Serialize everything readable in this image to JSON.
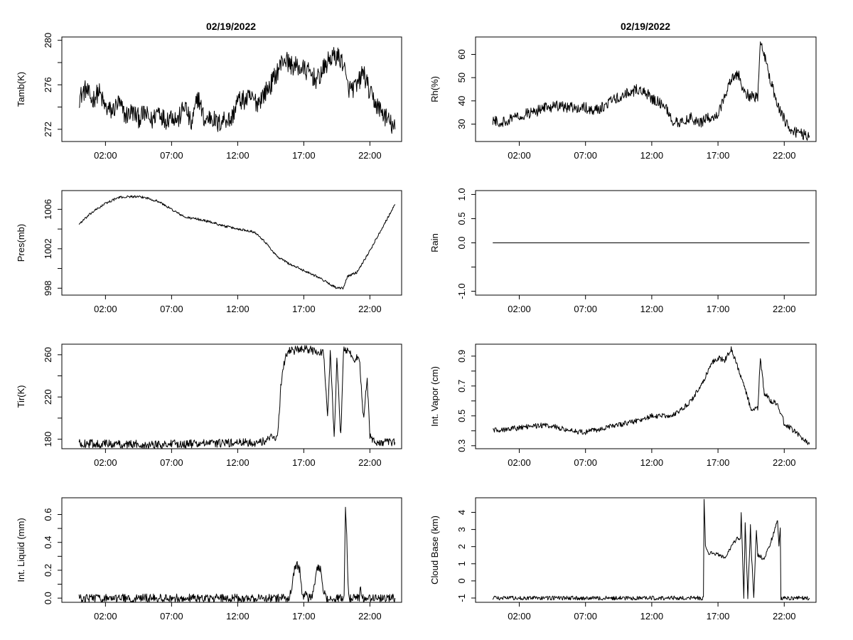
{
  "page": {
    "left_title": "02/19/2022",
    "right_title": "02/19/2022"
  },
  "chart_data": [
    {
      "id": "tamb",
      "type": "line",
      "ylabel": "Tamb(K)",
      "xlim": [
        -1.3,
        24.4
      ],
      "ylim": [
        270.9,
        280.3
      ],
      "xticks": [
        2,
        7,
        12,
        17,
        22
      ],
      "xticklabels": [
        "02:00",
        "07:00",
        "12:00",
        "17:00",
        "22:00"
      ],
      "yticks": [
        272,
        274,
        276,
        278,
        280
      ],
      "yticklabels": [
        "272",
        "",
        "276",
        "",
        "280"
      ],
      "x": [
        0,
        0.5,
        1,
        1.5,
        2,
        2.5,
        3,
        3.5,
        4,
        4.5,
        5,
        5.5,
        6,
        6.5,
        7,
        7.5,
        8,
        8.5,
        9,
        9.5,
        10,
        10.5,
        11,
        11.5,
        12,
        12.5,
        13,
        13.5,
        14,
        14.5,
        15,
        15.5,
        16,
        16.5,
        17,
        17.5,
        18,
        18.5,
        19,
        19.5,
        20,
        20.25,
        20.5,
        21,
        21.5,
        22,
        22.5,
        23,
        23.5,
        23.9
      ],
      "y": [
        274.8,
        275.6,
        274.6,
        275.4,
        273.9,
        273.6,
        274.4,
        273.2,
        273.6,
        273.0,
        273.4,
        272.7,
        273.8,
        272.8,
        273.3,
        272.8,
        274.2,
        272.3,
        275.0,
        272.7,
        273.2,
        272.4,
        273.0,
        272.8,
        274.6,
        274.6,
        274.8,
        274.4,
        275.2,
        276.0,
        277.2,
        278.4,
        277.8,
        277.6,
        277.4,
        277.0,
        276.4,
        277.4,
        278.4,
        278.6,
        278.0,
        276.0,
        275.6,
        275.8,
        277.2,
        275.2,
        274.2,
        273.4,
        272.6,
        272.0
      ],
      "noise": 0.9
    },
    {
      "id": "pres",
      "type": "line",
      "ylabel": "Pres(mb)",
      "xlim": [
        -1.3,
        24.4
      ],
      "ylim": [
        997.3,
        1007.9
      ],
      "xticks": [
        2,
        7,
        12,
        17,
        22
      ],
      "xticklabels": [
        "02:00",
        "07:00",
        "12:00",
        "17:00",
        "22:00"
      ],
      "yticks": [
        998,
        1000,
        1002,
        1004,
        1006
      ],
      "yticklabels": [
        "998",
        "",
        "1002",
        "",
        "1006"
      ],
      "x": [
        0,
        1,
        2,
        3,
        4,
        5,
        6,
        7,
        8,
        9,
        10,
        11,
        12,
        13,
        13.5,
        14,
        15,
        16,
        17,
        18,
        19,
        19.5,
        20,
        20.3,
        21,
        22,
        23,
        23.9
      ],
      "y": [
        1004.5,
        1005.7,
        1006.6,
        1007.2,
        1007.3,
        1007.2,
        1006.8,
        1006.0,
        1005.2,
        1005.0,
        1004.7,
        1004.3,
        1004.0,
        1003.8,
        1003.5,
        1002.8,
        1001.2,
        1000.4,
        999.8,
        999.2,
        998.4,
        998.0,
        998.0,
        999.2,
        999.6,
        1001.8,
        1004.3,
        1006.5
      ],
      "noise": 0.12
    },
    {
      "id": "tir",
      "type": "line",
      "ylabel": "Tir(K)",
      "xlim": [
        -1.3,
        24.4
      ],
      "ylim": [
        171,
        270
      ],
      "xticks": [
        2,
        7,
        12,
        17,
        22
      ],
      "xticklabels": [
        "02:00",
        "07:00",
        "12:00",
        "17:00",
        "22:00"
      ],
      "yticks": [
        180,
        200,
        220,
        240,
        260
      ],
      "yticklabels": [
        "180",
        "",
        "220",
        "",
        "260"
      ],
      "x": [
        0,
        5,
        10,
        13.5,
        14.2,
        14.6,
        15.0,
        15.3,
        15.5,
        15.8,
        16.2,
        17.0,
        17.8,
        18.5,
        18.8,
        19.0,
        19.3,
        19.5,
        19.8,
        20.0,
        20.3,
        20.8,
        21.2,
        21.5,
        21.8,
        22.0,
        22.3,
        22.6,
        23.0,
        23.9
      ],
      "y": [
        176,
        175,
        176,
        177,
        178,
        185,
        180,
        235,
        252,
        264,
        264,
        265,
        264,
        262,
        200,
        262,
        182,
        255,
        183,
        265,
        264,
        256,
        258,
        200,
        235,
        182,
        178,
        177,
        177,
        177
      ],
      "noise": 4
    },
    {
      "id": "liquid",
      "type": "line",
      "ylabel": "Int. Liquid (mm)",
      "xlim": [
        -1.3,
        24.4
      ],
      "ylim": [
        -0.03,
        0.72
      ],
      "xticks": [
        2,
        7,
        12,
        17,
        22
      ],
      "xticklabels": [
        "02:00",
        "07:00",
        "12:00",
        "17:00",
        "22:00"
      ],
      "yticks": [
        0,
        0.1,
        0.2,
        0.3,
        0.4,
        0.5,
        0.6
      ],
      "yticklabels": [
        "0.0",
        "",
        "0.2",
        "",
        "0.4",
        "",
        "0.6"
      ],
      "x": [
        0,
        15.9,
        16.1,
        16.3,
        16.5,
        16.7,
        16.9,
        17.1,
        17.3,
        17.6,
        17.8,
        18.0,
        18.3,
        18.5,
        18.7,
        20.05,
        20.15,
        20.25,
        20.35,
        20.45,
        21.0,
        21.2,
        21.3,
        21.4,
        21.6,
        23.9
      ],
      "y": [
        0,
        0,
        0.08,
        0.22,
        0.24,
        0.2,
        0.0,
        0.03,
        0.0,
        0.0,
        0.1,
        0.22,
        0.2,
        0.05,
        0,
        0,
        0.68,
        0.45,
        0.1,
        0,
        0,
        0,
        0.08,
        0,
        0,
        0
      ],
      "noise": 0.03
    },
    {
      "id": "rh",
      "type": "line",
      "ylabel": "Rh(%)",
      "xlim": [
        -1.3,
        24.4
      ],
      "ylim": [
        22.5,
        67.5
      ],
      "xticks": [
        2,
        7,
        12,
        17,
        22
      ],
      "xticklabels": [
        "02:00",
        "07:00",
        "12:00",
        "17:00",
        "22:00"
      ],
      "yticks": [
        30,
        40,
        50,
        60
      ],
      "yticklabels": [
        "30",
        "40",
        "50",
        "60"
      ],
      "x": [
        0,
        1,
        2,
        3,
        4,
        5,
        6,
        7,
        8,
        9,
        10,
        11,
        11.5,
        12,
        13,
        13.5,
        14,
        15,
        15.5,
        16,
        17,
        18,
        18.5,
        19,
        20,
        20.2,
        20.5,
        21,
        21.5,
        22,
        22.5,
        23,
        23.9
      ],
      "y": [
        31,
        31,
        34,
        35,
        37,
        38,
        37,
        37,
        36,
        40,
        43,
        45,
        44,
        41,
        38,
        32,
        30,
        33,
        30,
        32,
        34,
        50,
        52,
        43,
        41,
        66,
        60,
        48,
        38,
        32,
        27,
        26,
        25
      ],
      "noise": 2.4
    },
    {
      "id": "rain",
      "type": "line",
      "ylabel": "Rain",
      "xlim": [
        -1.3,
        24.4
      ],
      "ylim": [
        -1.08,
        1.08
      ],
      "xticks": [
        2,
        7,
        12,
        17,
        22
      ],
      "xticklabels": [
        "02:00",
        "07:00",
        "12:00",
        "17:00",
        "22:00"
      ],
      "yticks": [
        -1,
        -0.5,
        0,
        0.5,
        1
      ],
      "yticklabels": [
        "-1.0",
        "",
        "0.0",
        "0.5",
        "1.0"
      ],
      "x": [
        0,
        23.9
      ],
      "y": [
        0,
        0
      ],
      "noise": 0
    },
    {
      "id": "vapor",
      "type": "line",
      "ylabel": "Int. Vapor (cm)",
      "xlim": [
        -1.3,
        24.4
      ],
      "ylim": [
        0.28,
        0.98
      ],
      "xticks": [
        2,
        7,
        12,
        17,
        22
      ],
      "xticklabels": [
        "02:00",
        "07:00",
        "12:00",
        "17:00",
        "22:00"
      ],
      "yticks": [
        0.3,
        0.4,
        0.5,
        0.6,
        0.7,
        0.8,
        0.9
      ],
      "yticklabels": [
        "0.3",
        "",
        "0.5",
        "",
        "0.7",
        "",
        "0.9"
      ],
      "x": [
        0,
        1,
        2,
        3,
        4,
        5,
        6,
        7,
        8,
        9,
        10,
        11,
        12,
        13,
        14,
        15,
        16,
        16.5,
        17,
        17.5,
        18,
        18.5,
        19,
        19.5,
        20,
        20.2,
        20.5,
        21,
        21.5,
        22,
        23,
        23.9
      ],
      "y": [
        0.4,
        0.41,
        0.42,
        0.43,
        0.44,
        0.42,
        0.4,
        0.39,
        0.41,
        0.43,
        0.45,
        0.47,
        0.5,
        0.5,
        0.52,
        0.6,
        0.75,
        0.85,
        0.89,
        0.87,
        0.95,
        0.82,
        0.7,
        0.54,
        0.55,
        0.88,
        0.65,
        0.6,
        0.58,
        0.45,
        0.38,
        0.31
      ],
      "noise": 0.018
    },
    {
      "id": "cloudbase",
      "type": "line",
      "ylabel": "Cloud Base (km)",
      "xlim": [
        -1.3,
        24.4
      ],
      "ylim": [
        -1.25,
        4.85
      ],
      "xticks": [
        2,
        7,
        12,
        17,
        22
      ],
      "xticklabels": [
        "02:00",
        "07:00",
        "12:00",
        "17:00",
        "22:00"
      ],
      "yticks": [
        -1,
        0,
        1,
        2,
        3,
        4
      ],
      "yticklabels": [
        "-1",
        "0",
        "1",
        "2",
        "3",
        "4"
      ],
      "x": [
        0,
        15.9,
        15.95,
        16.05,
        16.3,
        17.0,
        17.5,
        18.0,
        18.5,
        18.7,
        18.75,
        18.95,
        19.05,
        19.25,
        19.45,
        19.5,
        19.7,
        19.9,
        20.0,
        20.5,
        21.0,
        21.5,
        21.6,
        21.7,
        21.75,
        22.5,
        23.9
      ],
      "y": [
        -1,
        -1,
        4.7,
        2.1,
        1.6,
        1.6,
        1.3,
        2.0,
        2.5,
        2.5,
        4.0,
        -1,
        3.4,
        -1,
        3.2,
        2.0,
        -1,
        3.0,
        1.5,
        1.3,
        2.3,
        3.5,
        2.0,
        3.0,
        -1,
        -1,
        -1
      ],
      "noise": 0.12
    }
  ]
}
